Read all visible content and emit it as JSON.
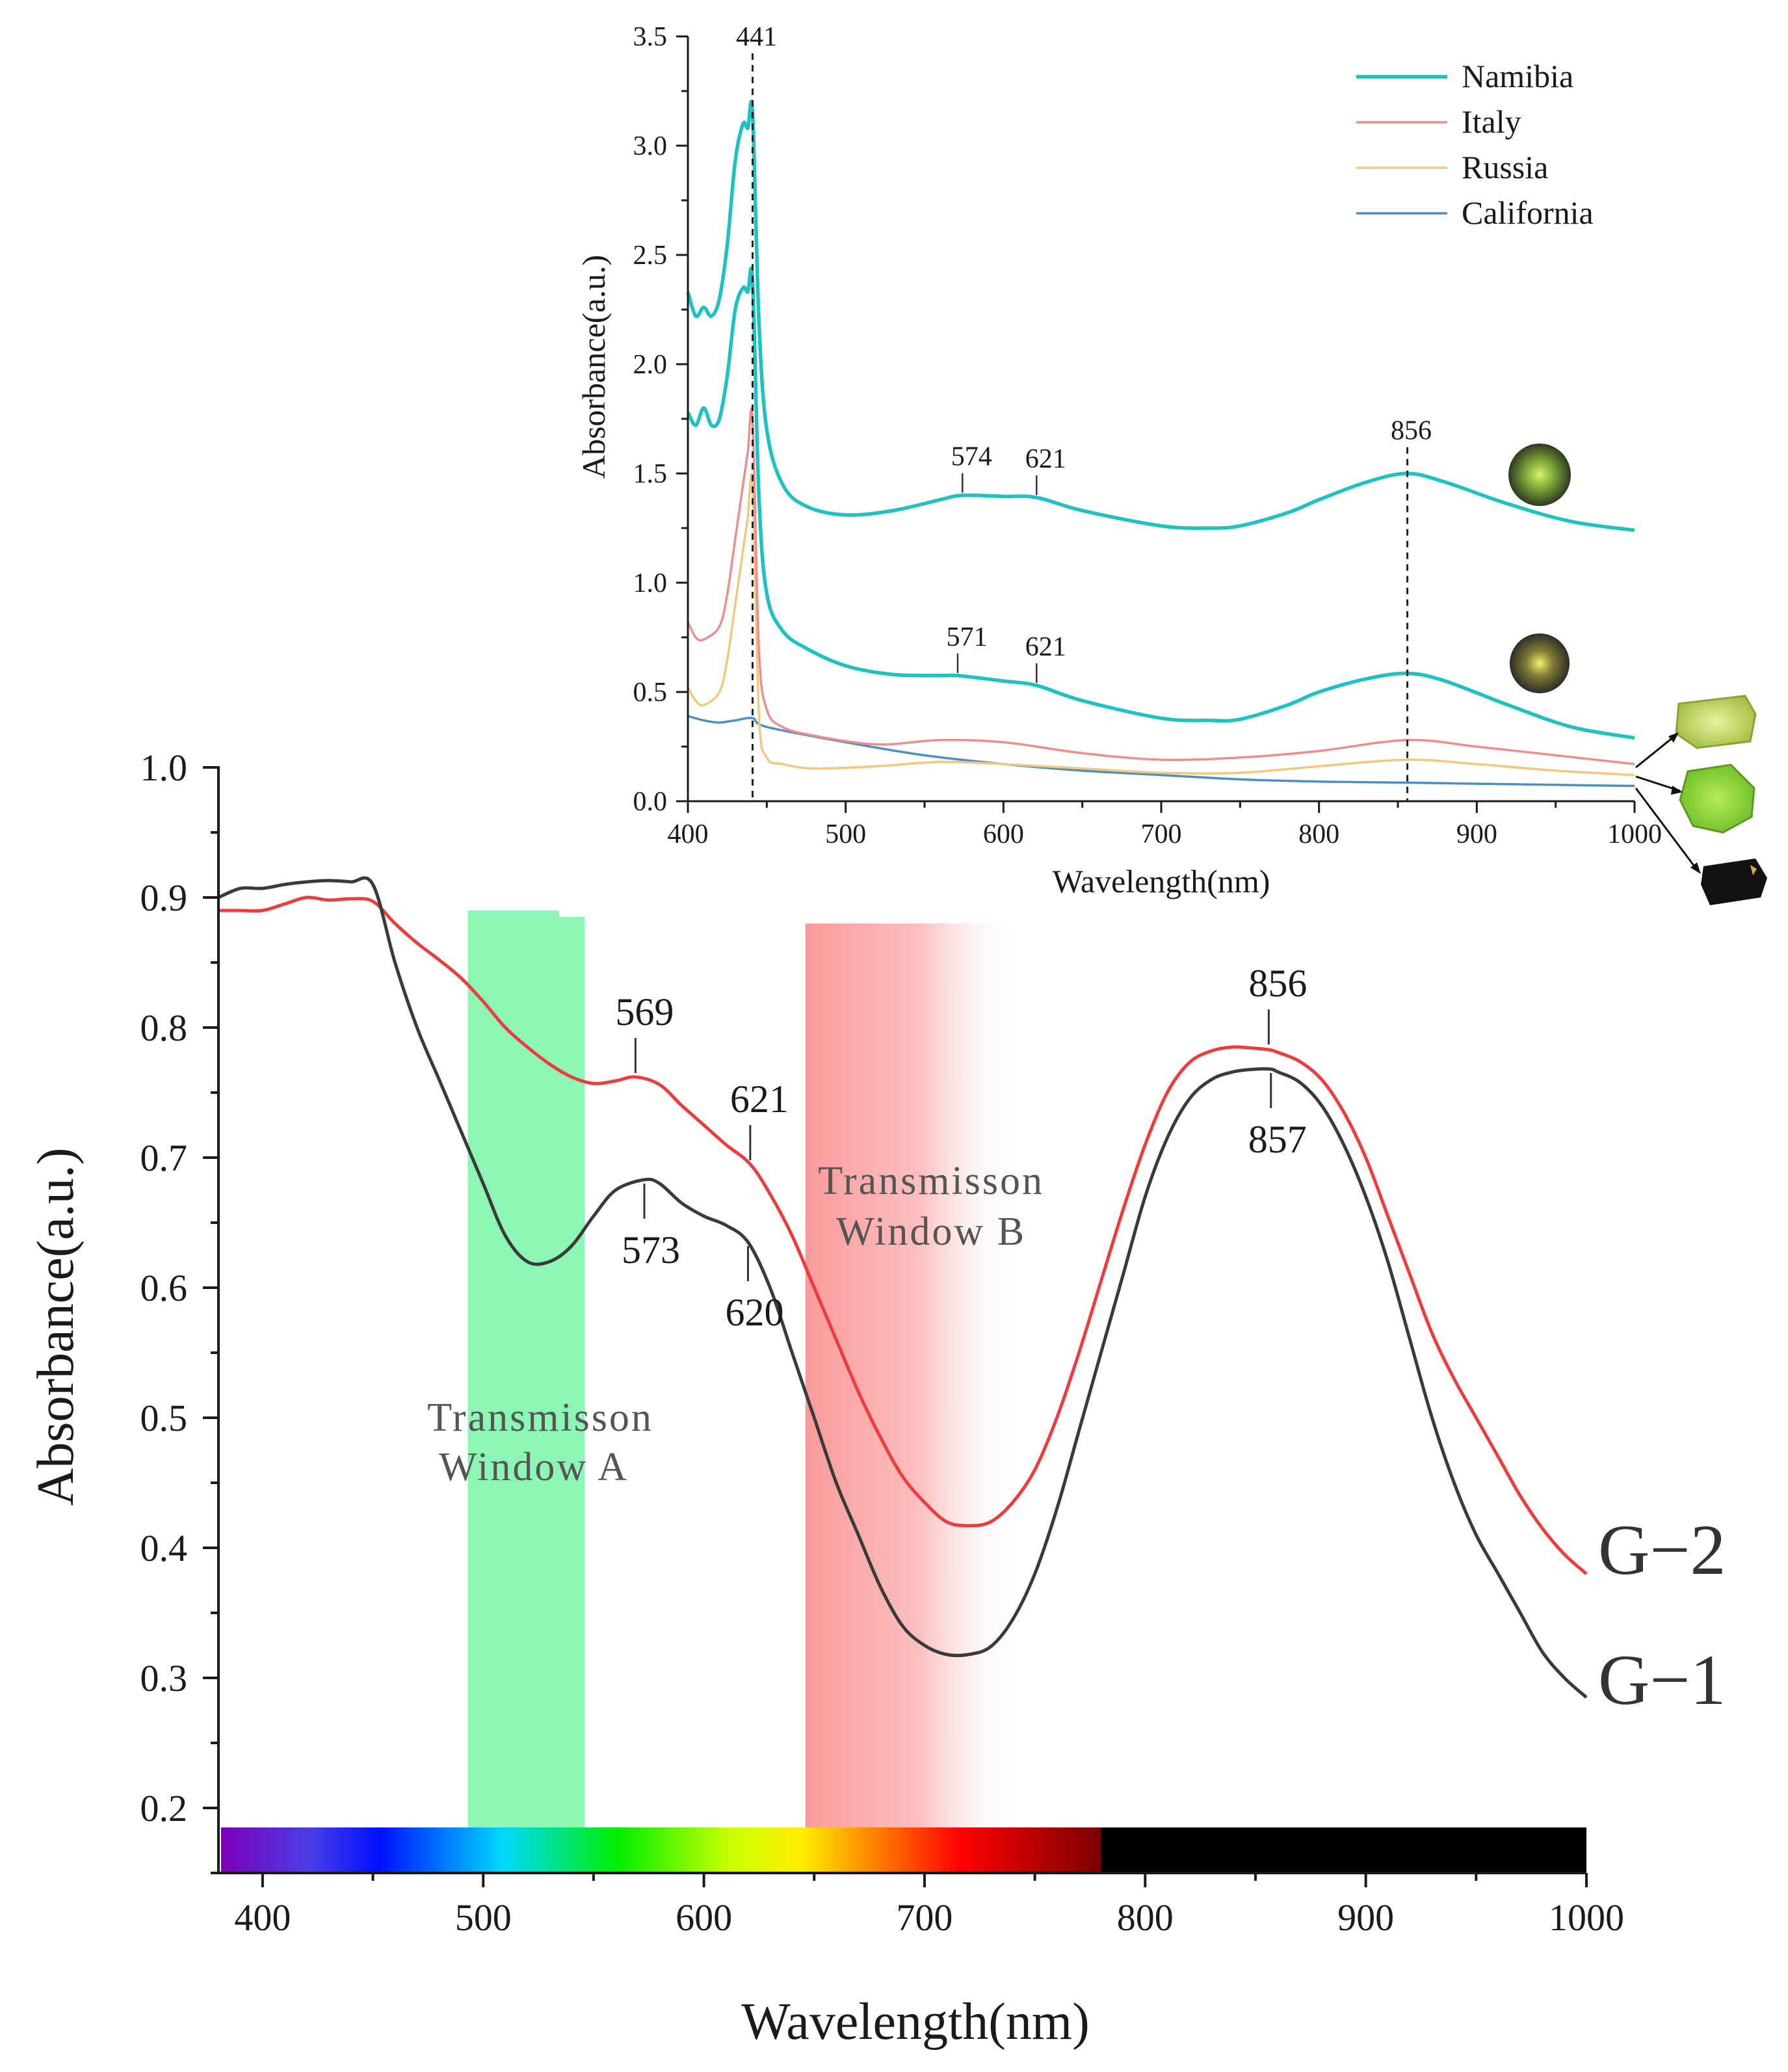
{
  "chart_data": [
    {
      "type": "line",
      "title": "",
      "xlabel": "Wavelength(nm)",
      "ylabel": "Absorbance(a.u.)",
      "xlim": [
        380,
        1000
      ],
      "ylim": [
        0.15,
        1.0
      ],
      "xticks": [
        400,
        500,
        600,
        700,
        800,
        900,
        1000
      ],
      "yticks": [
        0.2,
        0.3,
        0.4,
        0.5,
        0.6,
        0.7,
        0.8,
        0.9,
        1.0
      ],
      "xtick_labels": [
        "400",
        "500",
        "600",
        "700",
        "800",
        "900",
        "1000"
      ],
      "ytick_labels": [
        "0.2",
        "0.3",
        "0.4",
        "0.5",
        "0.6",
        "0.7",
        "0.8",
        "0.9",
        "1.0"
      ],
      "series": [
        {
          "name": "G−2",
          "color": "#ee3b3b",
          "x": [
            380,
            390,
            400,
            410,
            420,
            430,
            440,
            450,
            460,
            470,
            480,
            490,
            500,
            510,
            520,
            530,
            540,
            550,
            560,
            569,
            580,
            590,
            600,
            610,
            621,
            630,
            640,
            650,
            660,
            670,
            680,
            690,
            700,
            710,
            720,
            730,
            740,
            750,
            760,
            770,
            780,
            790,
            800,
            810,
            820,
            830,
            840,
            850,
            856,
            860,
            870,
            880,
            890,
            900,
            910,
            920,
            930,
            940,
            950,
            960,
            970,
            980,
            990,
            1000
          ],
          "values": [
            0.89,
            0.89,
            0.89,
            0.895,
            0.9,
            0.898,
            0.899,
            0.897,
            0.88,
            0.865,
            0.852,
            0.838,
            0.82,
            0.8,
            0.785,
            0.772,
            0.762,
            0.757,
            0.759,
            0.762,
            0.756,
            0.74,
            0.725,
            0.71,
            0.695,
            0.672,
            0.64,
            0.6,
            0.56,
            0.52,
            0.485,
            0.455,
            0.435,
            0.42,
            0.417,
            0.42,
            0.435,
            0.46,
            0.5,
            0.55,
            0.605,
            0.66,
            0.71,
            0.75,
            0.773,
            0.782,
            0.785,
            0.784,
            0.783,
            0.781,
            0.774,
            0.76,
            0.735,
            0.7,
            0.655,
            0.61,
            0.565,
            0.53,
            0.5,
            0.47,
            0.44,
            0.415,
            0.395,
            0.38
          ]
        },
        {
          "name": "G−1",
          "color": "#3a3a3a",
          "x": [
            380,
            390,
            400,
            410,
            420,
            430,
            440,
            450,
            460,
            470,
            480,
            490,
            500,
            510,
            520,
            530,
            540,
            550,
            560,
            573,
            580,
            590,
            600,
            610,
            620,
            630,
            640,
            650,
            660,
            670,
            680,
            690,
            700,
            710,
            720,
            730,
            740,
            750,
            760,
            770,
            780,
            790,
            800,
            810,
            820,
            830,
            840,
            850,
            857,
            860,
            870,
            880,
            890,
            900,
            910,
            920,
            930,
            940,
            950,
            960,
            970,
            980,
            990,
            1000
          ],
          "values": [
            0.9,
            0.907,
            0.907,
            0.91,
            0.912,
            0.913,
            0.912,
            0.91,
            0.85,
            0.8,
            0.76,
            0.72,
            0.68,
            0.64,
            0.62,
            0.62,
            0.632,
            0.655,
            0.675,
            0.683,
            0.68,
            0.665,
            0.655,
            0.648,
            0.635,
            0.6,
            0.55,
            0.5,
            0.45,
            0.41,
            0.37,
            0.34,
            0.325,
            0.318,
            0.318,
            0.324,
            0.345,
            0.38,
            0.43,
            0.49,
            0.55,
            0.61,
            0.67,
            0.715,
            0.745,
            0.76,
            0.766,
            0.768,
            0.768,
            0.766,
            0.758,
            0.74,
            0.71,
            0.67,
            0.62,
            0.56,
            0.5,
            0.45,
            0.41,
            0.38,
            0.35,
            0.32,
            0.3,
            0.285
          ]
        }
      ],
      "shaded_regions": [
        {
          "label_lines": [
            "Transmisson",
            "Window A"
          ],
          "x_range": [
            493,
            546
          ],
          "y_range": [
            0.15,
            0.89
          ],
          "color": "#8cf7b4"
        },
        {
          "label_lines": [
            "Transmisson",
            "Window B"
          ],
          "x_range": [
            646,
            740
          ],
          "y_range": [
            0.15,
            0.88
          ],
          "color": "#fa9a9a"
        }
      ],
      "spectrum_bar": {
        "x_range": [
          380,
          1000
        ],
        "visible_end": 780
      },
      "annotations": [
        {
          "text": "569",
          "x": 569,
          "y": 0.762,
          "side": "above"
        },
        {
          "text": "621",
          "x": 621,
          "y": 0.695,
          "side": "above"
        },
        {
          "text": "856",
          "x": 856,
          "y": 0.784,
          "side": "above"
        },
        {
          "text": "573",
          "x": 573,
          "y": 0.683,
          "side": "below"
        },
        {
          "text": "620",
          "x": 620,
          "y": 0.635,
          "side": "below"
        },
        {
          "text": "857",
          "x": 857,
          "y": 0.768,
          "side": "below"
        }
      ]
    },
    {
      "type": "line",
      "title": "",
      "xlabel": "Wavelength(nm)",
      "ylabel": "Absorbance(a.u.)",
      "xlim": [
        400,
        1000
      ],
      "ylim": [
        0,
        3.5
      ],
      "xticks": [
        400,
        500,
        600,
        700,
        800,
        900,
        1000
      ],
      "yticks": [
        0.0,
        0.5,
        1.0,
        1.5,
        2.0,
        2.5,
        3.0,
        3.5
      ],
      "xtick_labels": [
        "400",
        "500",
        "600",
        "700",
        "800",
        "900",
        "1000"
      ],
      "ytick_labels": [
        "0.0",
        "0.5",
        "1.0",
        "1.5",
        "2.0",
        "2.5",
        "3.0",
        "3.5"
      ],
      "legend_position": "top-right",
      "series": [
        {
          "name": "Namibia",
          "color": "#1ec2c2",
          "x": [
            400,
            405,
            410,
            415,
            420,
            425,
            430,
            435,
            438,
            441,
            445,
            450,
            460,
            475,
            500,
            530,
            560,
            574,
            600,
            621,
            650,
            700,
            730,
            750,
            780,
            800,
            830,
            856,
            880,
            920,
            960,
            1000
          ],
          "values": [
            2.33,
            2.22,
            2.26,
            2.22,
            2.3,
            2.55,
            2.93,
            3.1,
            3.08,
            3.15,
            2.2,
            1.7,
            1.45,
            1.35,
            1.31,
            1.33,
            1.38,
            1.4,
            1.395,
            1.39,
            1.33,
            1.26,
            1.25,
            1.26,
            1.32,
            1.38,
            1.46,
            1.5,
            1.46,
            1.36,
            1.28,
            1.24
          ]
        },
        {
          "name": "Namibia",
          "color": "#1ec2c2",
          "x": [
            400,
            405,
            410,
            415,
            420,
            425,
            430,
            435,
            438,
            441,
            445,
            450,
            460,
            475,
            500,
            530,
            560,
            571,
            600,
            621,
            650,
            700,
            730,
            750,
            780,
            800,
            830,
            856,
            880,
            920,
            960,
            1000
          ],
          "values": [
            1.78,
            1.72,
            1.8,
            1.72,
            1.75,
            1.95,
            2.25,
            2.35,
            2.33,
            2.38,
            1.4,
            0.95,
            0.78,
            0.7,
            0.62,
            0.58,
            0.575,
            0.575,
            0.55,
            0.53,
            0.46,
            0.38,
            0.37,
            0.375,
            0.44,
            0.5,
            0.56,
            0.585,
            0.55,
            0.44,
            0.34,
            0.29
          ]
        },
        {
          "name": "Italy",
          "color": "#f08c8c",
          "x": [
            400,
            405,
            410,
            420,
            425,
            430,
            435,
            438,
            441,
            445,
            450,
            460,
            480,
            520,
            560,
            600,
            650,
            700,
            750,
            800,
            856,
            900,
            950,
            1000
          ],
          "values": [
            0.82,
            0.75,
            0.74,
            0.8,
            0.95,
            1.2,
            1.45,
            1.6,
            1.75,
            0.7,
            0.42,
            0.34,
            0.3,
            0.26,
            0.28,
            0.27,
            0.22,
            0.19,
            0.2,
            0.23,
            0.28,
            0.25,
            0.21,
            0.17
          ]
        },
        {
          "name": "Russia",
          "color": "#f5c77a",
          "x": [
            400,
            405,
            410,
            420,
            425,
            430,
            435,
            438,
            441,
            445,
            450,
            460,
            480,
            520,
            560,
            600,
            650,
            700,
            750,
            800,
            856,
            900,
            950,
            1000
          ],
          "values": [
            0.52,
            0.46,
            0.44,
            0.5,
            0.65,
            0.9,
            1.15,
            1.3,
            1.45,
            0.4,
            0.2,
            0.17,
            0.15,
            0.16,
            0.18,
            0.17,
            0.15,
            0.13,
            0.13,
            0.16,
            0.19,
            0.17,
            0.14,
            0.12
          ]
        },
        {
          "name": "California",
          "color": "#4a90c8",
          "x": [
            400,
            410,
            420,
            430,
            441,
            450,
            500,
            550,
            600,
            650,
            700,
            750,
            800,
            856,
            900,
            950,
            1000
          ],
          "values": [
            0.39,
            0.37,
            0.36,
            0.37,
            0.38,
            0.34,
            0.27,
            0.21,
            0.17,
            0.14,
            0.12,
            0.1,
            0.09,
            0.085,
            0.08,
            0.075,
            0.07
          ]
        }
      ],
      "legend_entries": [
        "Namibia",
        "Italy",
        "Russia",
        "California"
      ],
      "legend_colors": [
        "#1ec2c2",
        "#f08c8c",
        "#f5c77a",
        "#4a90c8"
      ],
      "vlines": [
        {
          "x": 441,
          "label": "441"
        },
        {
          "x": 856,
          "label": "856"
        }
      ],
      "annotations": [
        {
          "text": "574",
          "x": 574,
          "y": 1.4
        },
        {
          "text": "621",
          "x": 621,
          "y": 1.39
        },
        {
          "text": "571",
          "x": 571,
          "y": 0.575
        },
        {
          "text": "621",
          "x": 621,
          "y": 0.53
        }
      ]
    }
  ]
}
